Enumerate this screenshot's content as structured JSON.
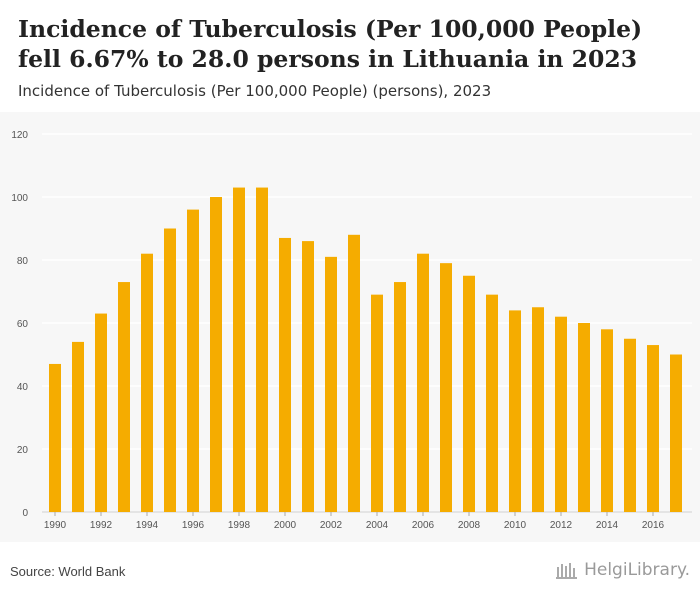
{
  "header": {
    "title": "Incidence of Tuberculosis (Per 100,000 People) fell 6.67% to 28.0 persons in Lithuania in 2023",
    "subtitle": "Incidence of Tuberculosis (Per 100,000 People) (persons), 2023"
  },
  "footer": {
    "source": "Source: World Bank",
    "logo": "HelgiLibrary."
  },
  "colors": {
    "bar": "#f5ac00",
    "background": "#f7f7f7",
    "grid": "#ffffff"
  },
  "chart_data": {
    "type": "bar",
    "title": "Incidence of Tuberculosis (Per 100,000 People) (persons), 2023",
    "xlabel": "",
    "ylabel": "",
    "ylim": [
      0,
      120
    ],
    "yticks": [
      0,
      20,
      40,
      60,
      80,
      100,
      120
    ],
    "categories": [
      "1990",
      "1991",
      "1992",
      "1993",
      "1994",
      "1995",
      "1996",
      "1997",
      "1998",
      "1999",
      "2000",
      "2001",
      "2002",
      "2003",
      "2004",
      "2005",
      "2006",
      "2007",
      "2008",
      "2009",
      "2010",
      "2011",
      "2012",
      "2013",
      "2014",
      "2015",
      "2016",
      "2017"
    ],
    "xtick_labels": [
      "1990",
      "1992",
      "1994",
      "1996",
      "1998",
      "2000",
      "2002",
      "2004",
      "2006",
      "2008",
      "2010",
      "2012",
      "2014",
      "2016"
    ],
    "values": [
      47,
      54,
      63,
      73,
      82,
      90,
      96,
      100,
      103,
      103,
      87,
      86,
      81,
      88,
      69,
      73,
      82,
      79,
      75,
      69,
      64,
      65,
      62,
      60,
      58,
      55,
      53,
      50
    ]
  }
}
